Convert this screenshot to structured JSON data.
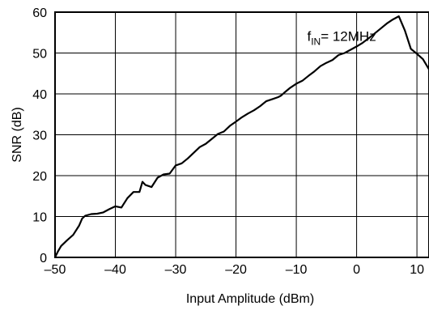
{
  "chart_data": {
    "type": "line",
    "title": "",
    "xlabel": "Input Amplitude (dBm)",
    "ylabel": "SNR (dB)",
    "xlim": [
      -50,
      12
    ],
    "ylim": [
      0,
      60
    ],
    "xticks": [
      -50,
      -40,
      -30,
      -20,
      -10,
      0,
      10
    ],
    "xtick_labels": [
      "–50",
      "–40",
      "–30",
      "–20",
      "–10",
      "0",
      "10"
    ],
    "yticks": [
      0,
      10,
      20,
      30,
      40,
      50,
      60
    ],
    "ytick_labels": [
      "0",
      "10",
      "20",
      "30",
      "40",
      "50",
      "60"
    ],
    "grid": true,
    "annotation": {
      "base": "f",
      "sub": "IN",
      "rest": "= 12MHz"
    },
    "series": [
      {
        "name": "",
        "x": [
          -50,
          -49.5,
          -49,
          -48,
          -47,
          -46,
          -45.5,
          -45,
          -44,
          -43,
          -42,
          -41,
          -40,
          -39,
          -38,
          -37,
          -36,
          -35.5,
          -35,
          -34,
          -33,
          -32,
          -31,
          -30,
          -29,
          -28,
          -27,
          -26,
          -25,
          -24,
          -23,
          -22,
          -21,
          -20,
          -19,
          -18,
          -17,
          -16,
          -15,
          -14,
          -13,
          -12.5,
          -12,
          -11,
          -10,
          -9,
          -8,
          -7,
          -6,
          -5,
          -4,
          -3,
          -2,
          -1,
          0,
          1,
          2,
          3,
          4,
          5,
          6,
          7,
          8,
          9,
          10,
          11,
          12
        ],
        "y": [
          0,
          1.5,
          2.8,
          4.2,
          5.5,
          7.8,
          9.5,
          10.2,
          10.6,
          10.7,
          11.0,
          11.8,
          12.5,
          12.2,
          14.5,
          16.0,
          16.0,
          18.5,
          17.7,
          17.2,
          19.5,
          20.3,
          20.5,
          22.5,
          23.0,
          24.2,
          25.6,
          27.0,
          27.8,
          29.0,
          30.2,
          30.8,
          32.2,
          33.2,
          34.3,
          35.2,
          36.0,
          37.0,
          38.2,
          38.7,
          39.2,
          39.6,
          40.3,
          41.5,
          42.5,
          43.2,
          44.4,
          45.5,
          46.8,
          47.6,
          48.3,
          49.5,
          50.0,
          50.8,
          51.6,
          52.5,
          53.6,
          54.8,
          56.0,
          57.2,
          58.2,
          59.0,
          55.5,
          51.0,
          49.8,
          48.5,
          46.0
        ]
      }
    ]
  }
}
